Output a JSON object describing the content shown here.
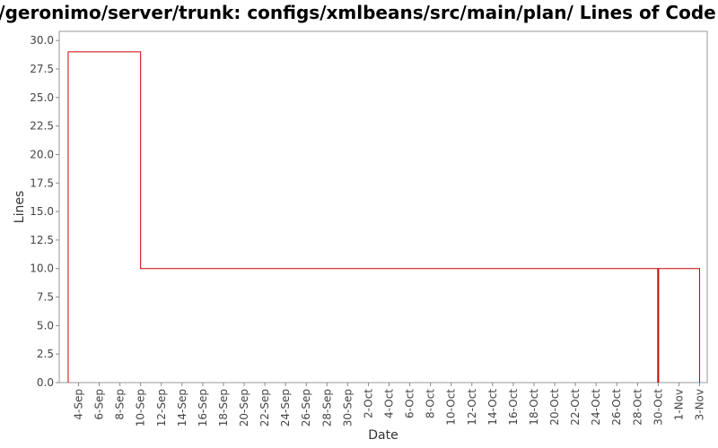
{
  "chart_data": {
    "type": "line",
    "title": "/geronimo/server/trunk: configs/xmlbeans/src/main/plan/ Lines of Code",
    "xlabel": "Date",
    "ylabel": "Lines",
    "x_ticks": [
      "4-Sep",
      "6-Sep",
      "8-Sep",
      "10-Sep",
      "12-Sep",
      "14-Sep",
      "16-Sep",
      "18-Sep",
      "20-Sep",
      "22-Sep",
      "24-Sep",
      "26-Sep",
      "28-Sep",
      "30-Sep",
      "2-Oct",
      "4-Oct",
      "6-Oct",
      "8-Oct",
      "10-Oct",
      "12-Oct",
      "14-Oct",
      "16-Oct",
      "18-Oct",
      "20-Oct",
      "22-Oct",
      "24-Oct",
      "26-Oct",
      "28-Oct",
      "30-Oct",
      "1-Nov",
      "3-Nov"
    ],
    "y_ticks": [
      "0.0",
      "2.5",
      "5.0",
      "7.5",
      "10.0",
      "12.5",
      "15.0",
      "17.5",
      "20.0",
      "22.5",
      "25.0",
      "27.5",
      "30.0"
    ],
    "ylim": [
      0,
      30.8
    ],
    "step": true,
    "grid": false,
    "series": [
      {
        "color": "#cc0000",
        "x": [
          "3-Sep",
          "10-Sep",
          "29-Oct",
          "30-Oct",
          "30-Oct",
          "3-Nov"
        ],
        "y": [
          29,
          10,
          10,
          10,
          10,
          0
        ]
      }
    ],
    "markers": [
      {
        "x": "30-Oct",
        "color": "#cc0000"
      }
    ]
  }
}
